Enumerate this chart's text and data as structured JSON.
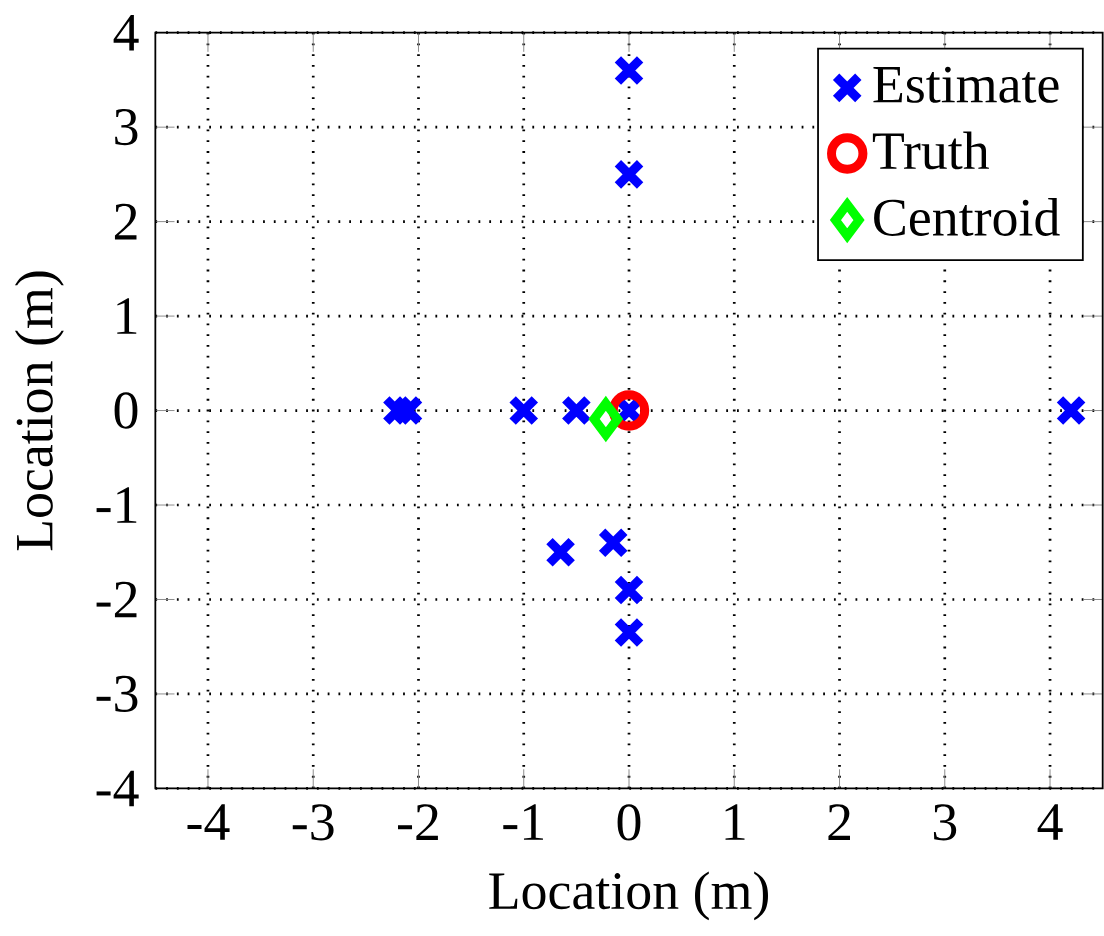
{
  "chart_data": {
    "type": "scatter",
    "xlabel": "Location (m)",
    "ylabel": "Location (m)",
    "xlim": [
      -4.5,
      4.5
    ],
    "ylim": [
      -4,
      4
    ],
    "xticks": [
      -4,
      -3,
      -2,
      -1,
      0,
      1,
      2,
      3,
      4
    ],
    "yticks": [
      -4,
      -3,
      -2,
      -1,
      0,
      1,
      2,
      3,
      4
    ],
    "grid": true,
    "legend": "top right",
    "series": [
      {
        "name": "Estimate",
        "color": "#0000ff",
        "marker": "cross",
        "x": [
          0,
          0,
          -2.2,
          -2.1,
          -1.0,
          -0.5,
          0,
          4.2,
          -0.65,
          -0.15,
          0,
          0
        ],
        "values": [
          3.6,
          2.5,
          0,
          0,
          0,
          0,
          0,
          0,
          -1.5,
          -1.4,
          -1.9,
          -2.35
        ]
      },
      {
        "name": "Truth",
        "color": "#ff0000",
        "marker": "circle",
        "x": [
          0
        ],
        "values": [
          0
        ]
      },
      {
        "name": "Centroid",
        "color": "#00ff00",
        "marker": "diamond",
        "x": [
          -0.22
        ],
        "values": [
          -0.09
        ]
      }
    ]
  }
}
